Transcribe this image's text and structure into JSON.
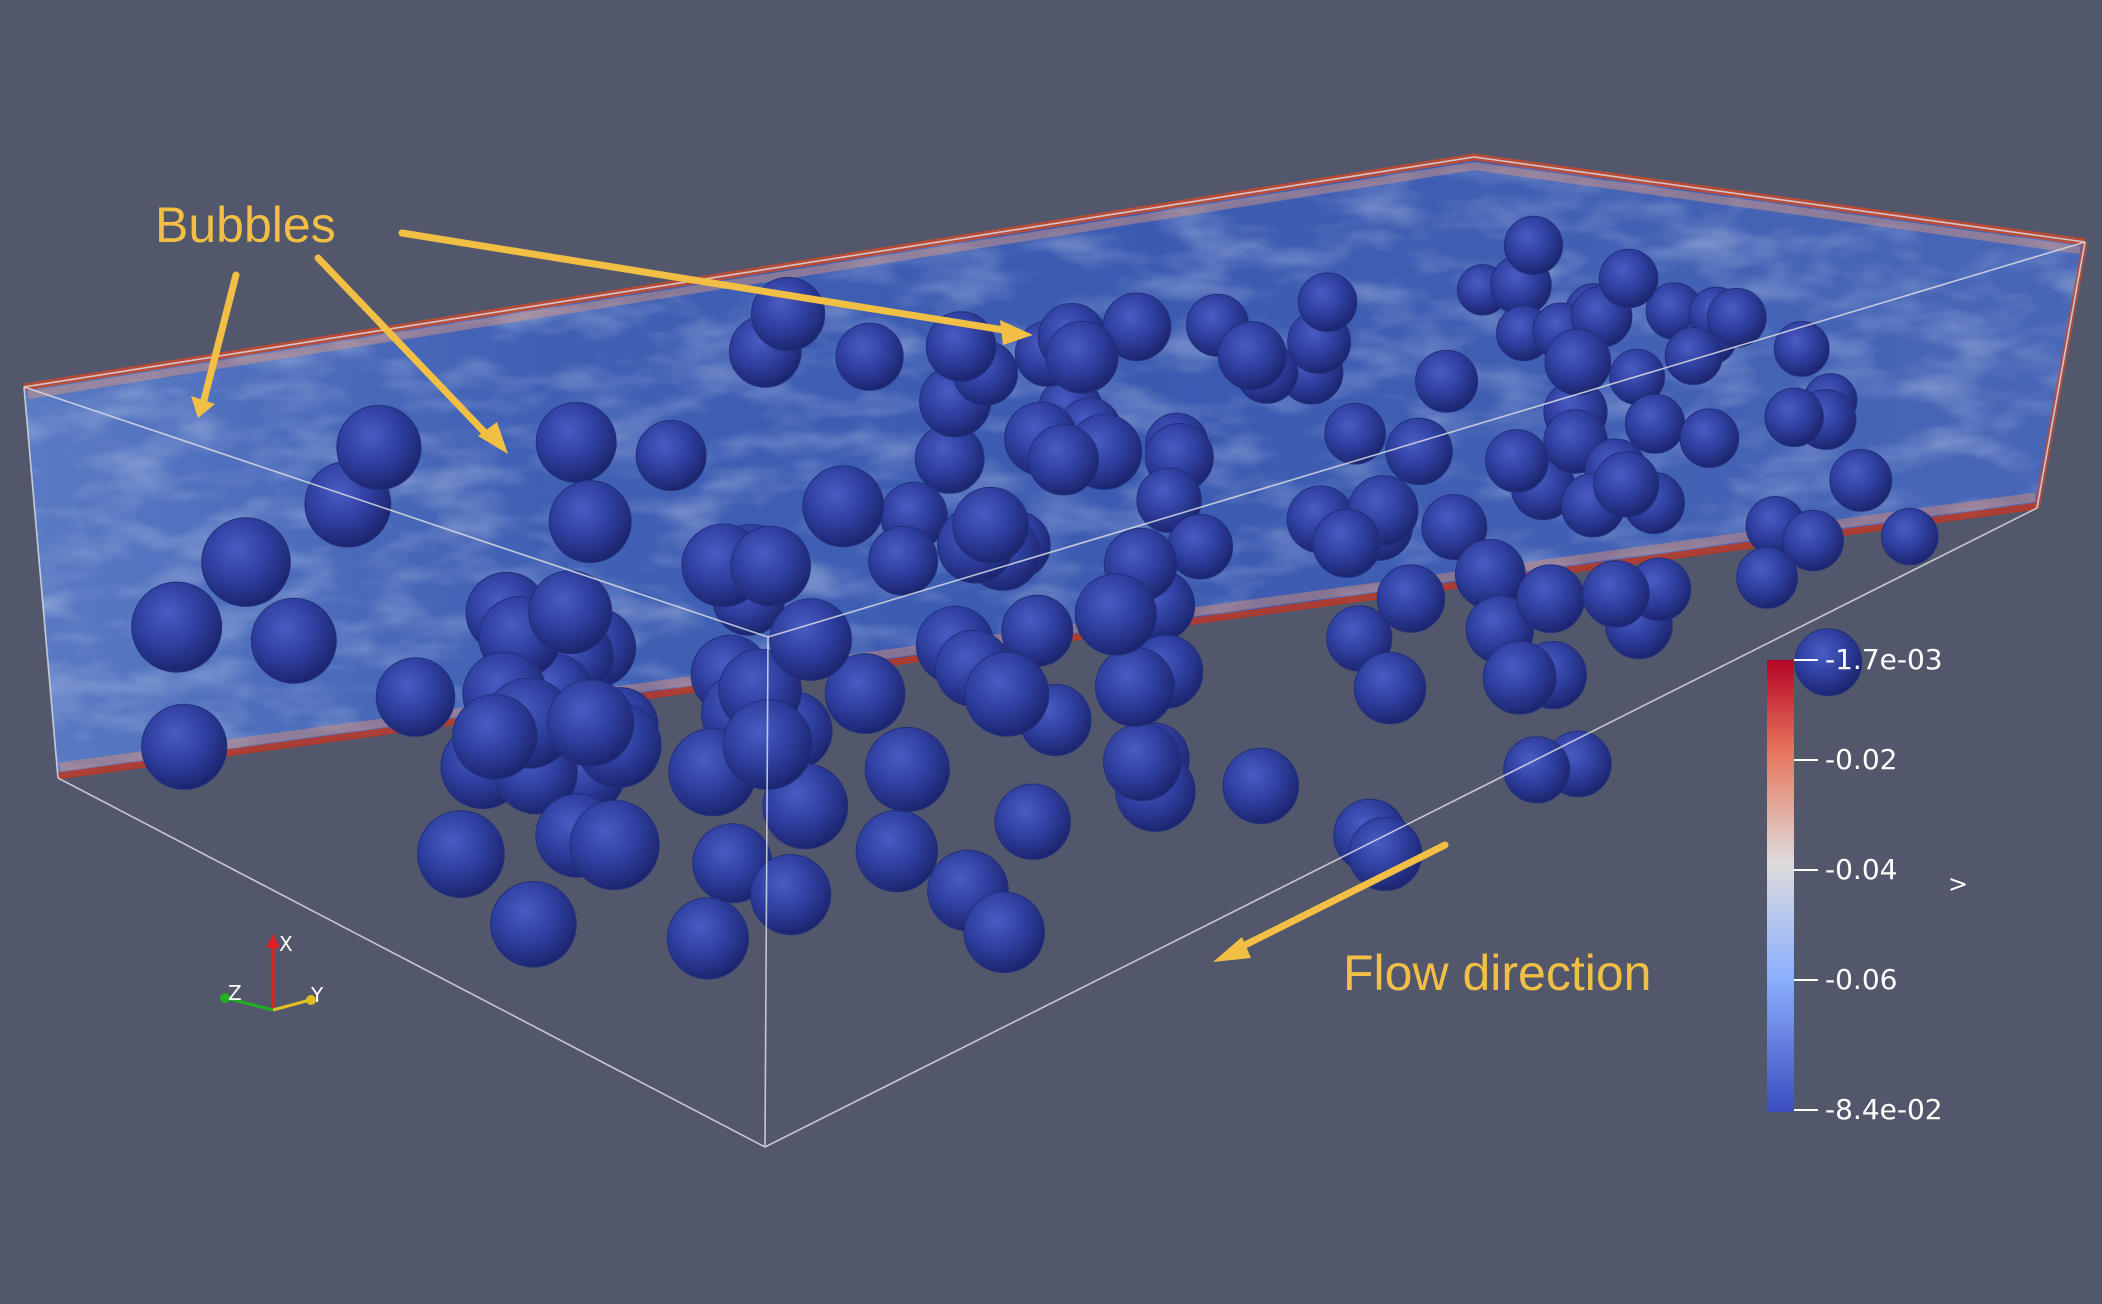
{
  "annotations": {
    "bubbles_label": "Bubbles",
    "flow_label": "Flow direction",
    "arrow_color": "#f2bf45"
  },
  "colorbar": {
    "colormap": "coolwarm",
    "top_color": "#b40426",
    "bottom_color": "#3b4cc0",
    "ticks": [
      "-1.7e-03",
      "-0.02",
      "-0.04",
      "-0.06",
      "-8.4e-02"
    ],
    "side_label": ">"
  },
  "orientation_axes": {
    "x_label": "X",
    "y_label": "Y",
    "z_label": "Z",
    "x_color": "#e02020",
    "y_color": "#e0c020",
    "z_color": "#20b020"
  },
  "scene": {
    "background": "#52576b",
    "bubble_color": "#2e3d9c",
    "bubble_count": 160
  }
}
